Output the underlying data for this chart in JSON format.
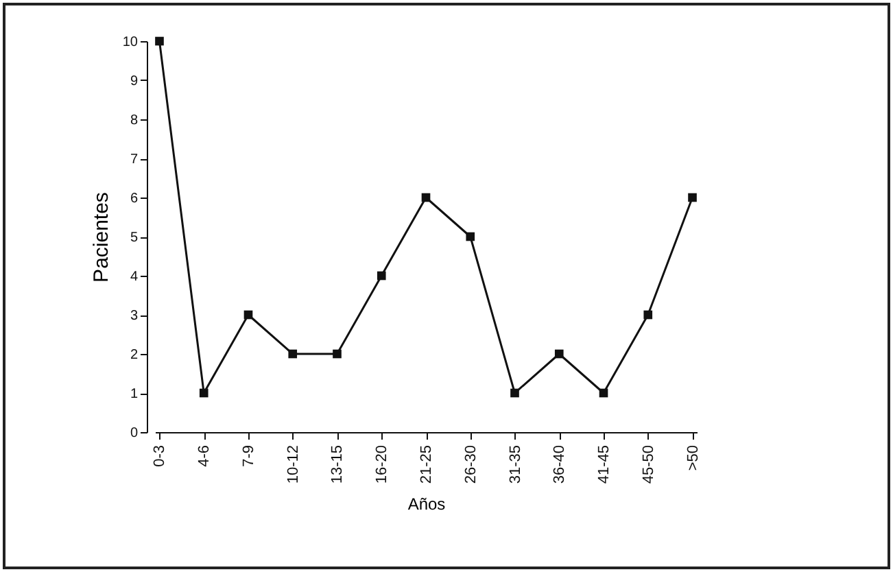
{
  "chart_data": {
    "type": "line",
    "xlabel": "Años",
    "ylabel": "Pacientes",
    "categories": [
      "0-3",
      "4-6",
      "7-9",
      "10-12",
      "13-15",
      "16-20",
      "21-25",
      "26-30",
      "31-35",
      "36-40",
      "41-45",
      "45-50",
      ">50"
    ],
    "series": [
      {
        "color": "#111111",
        "values": [
          10,
          1,
          3,
          2,
          2,
          4,
          6,
          5,
          1,
          2,
          1,
          3,
          6
        ]
      }
    ],
    "ylim": [
      0,
      10
    ],
    "yticks": [
      0,
      1,
      2,
      3,
      4,
      5,
      6,
      7,
      8,
      9,
      10
    ],
    "grid": false,
    "legend": false,
    "marker": "square",
    "line_style": "solid"
  }
}
